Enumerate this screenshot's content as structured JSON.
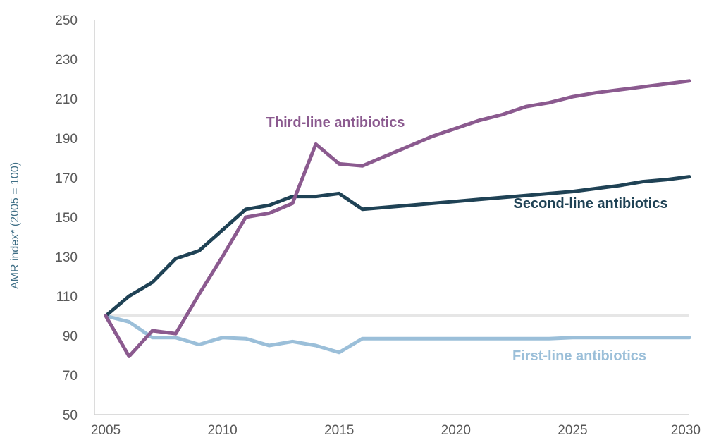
{
  "chart_data": {
    "type": "line",
    "title": "",
    "xlabel": "",
    "ylabel": "AMR index* (2005 = 100)",
    "xlim": [
      2005,
      2030
    ],
    "ylim": [
      50,
      250
    ],
    "xticks": [
      2005,
      2010,
      2015,
      2020,
      2025,
      2030
    ],
    "yticks": [
      50,
      70,
      90,
      110,
      130,
      150,
      170,
      190,
      210,
      230,
      250
    ],
    "reference_line": 100,
    "grid": false,
    "legend": "none",
    "x": [
      2005,
      2006,
      2007,
      2008,
      2009,
      2010,
      2011,
      2012,
      2013,
      2014,
      2015,
      2016,
      2017,
      2018,
      2019,
      2020,
      2021,
      2022,
      2023,
      2024,
      2025,
      2026,
      2027,
      2028,
      2029,
      2030
    ],
    "series": [
      {
        "name": "Third-line antibiotics",
        "color": "#8b5a8f",
        "values": [
          100,
          79.5,
          92.5,
          91,
          111,
          130,
          150,
          152,
          157,
          187,
          177,
          176,
          181,
          186,
          191,
          195,
          199,
          202,
          206,
          208,
          211,
          213,
          214.5,
          216,
          217.5,
          219
        ]
      },
      {
        "name": "Second-line antibiotics",
        "color": "#1f4255",
        "values": [
          100,
          110,
          117,
          129,
          133,
          143.5,
          154,
          156,
          160.5,
          160.5,
          162,
          154,
          155,
          156,
          157,
          158,
          159,
          160,
          161,
          162,
          163,
          164.5,
          166,
          168,
          169,
          170.5
        ]
      },
      {
        "name": "First-line antibiotics",
        "color": "#9bbfd9",
        "values": [
          100,
          97,
          89,
          89,
          85.5,
          89,
          88.5,
          85,
          87,
          85,
          81.5,
          88.5,
          88.5,
          88.5,
          88.5,
          88.5,
          88.5,
          88.5,
          88.5,
          88.5,
          89,
          89,
          89,
          89,
          89,
          89
        ]
      }
    ]
  }
}
